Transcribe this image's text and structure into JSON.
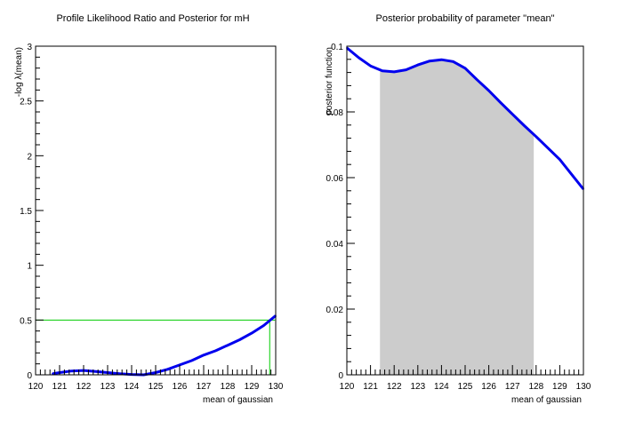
{
  "chart_data": [
    {
      "type": "line",
      "title": "Profile Likelihood Ratio and Posterior for mH",
      "xlabel": "mean of gaussian",
      "ylabel": "-log λ(mean)",
      "xlim": [
        120,
        130
      ],
      "ylim": [
        0,
        3
      ],
      "xticks": [
        "120",
        "121",
        "122",
        "123",
        "124",
        "125",
        "126",
        "127",
        "128",
        "129",
        "130"
      ],
      "yticks": [
        "0",
        "0.5",
        "1",
        "1.5",
        "2",
        "2.5",
        "3"
      ],
      "grid": false,
      "series": [
        {
          "color": "#0000ee",
          "x": [
            120.7,
            121.0,
            121.5,
            122.0,
            122.5,
            123.0,
            123.5,
            124.0,
            124.5,
            125.0,
            125.5,
            126.0,
            126.5,
            127.0,
            127.5,
            128.0,
            128.5,
            129.0,
            129.5,
            130.0
          ],
          "y": [
            0.01,
            0.02,
            0.035,
            0.04,
            0.03,
            0.02,
            0.01,
            0.003,
            0.0,
            0.02,
            0.05,
            0.09,
            0.13,
            0.18,
            0.22,
            0.27,
            0.32,
            0.38,
            0.45,
            0.54
          ]
        }
      ],
      "threshold": {
        "y": 0.5,
        "x": 129.75,
        "color": "#00cc00"
      }
    },
    {
      "type": "line",
      "title": "Posterior probability of parameter \"mean\"",
      "xlabel": "mean of gaussian",
      "ylabel": "posterior function",
      "xlim": [
        120,
        130
      ],
      "ylim": [
        0,
        0.1
      ],
      "xticks": [
        "120",
        "121",
        "122",
        "123",
        "124",
        "125",
        "126",
        "127",
        "128",
        "129",
        "130"
      ],
      "yticks": [
        "0",
        "0.02",
        "0.04",
        "0.06",
        "0.08",
        "0.1"
      ],
      "grid": false,
      "series": [
        {
          "color": "#0000ee",
          "x": [
            120.0,
            120.5,
            121.0,
            121.5,
            122.0,
            122.5,
            123.0,
            123.5,
            124.0,
            124.5,
            125.0,
            125.5,
            126.0,
            126.5,
            127.0,
            127.5,
            128.0,
            128.5,
            129.0,
            129.5,
            130.0
          ],
          "y": [
            0.0995,
            0.0965,
            0.094,
            0.0925,
            0.0922,
            0.0928,
            0.0943,
            0.0955,
            0.0959,
            0.0953,
            0.0933,
            0.0898,
            0.0865,
            0.0828,
            0.0793,
            0.0758,
            0.0725,
            0.069,
            0.0655,
            0.061,
            0.0565
          ]
        }
      ],
      "shaded_interval": [
        121.4,
        127.9
      ],
      "shade_color": "#cccccc"
    }
  ]
}
